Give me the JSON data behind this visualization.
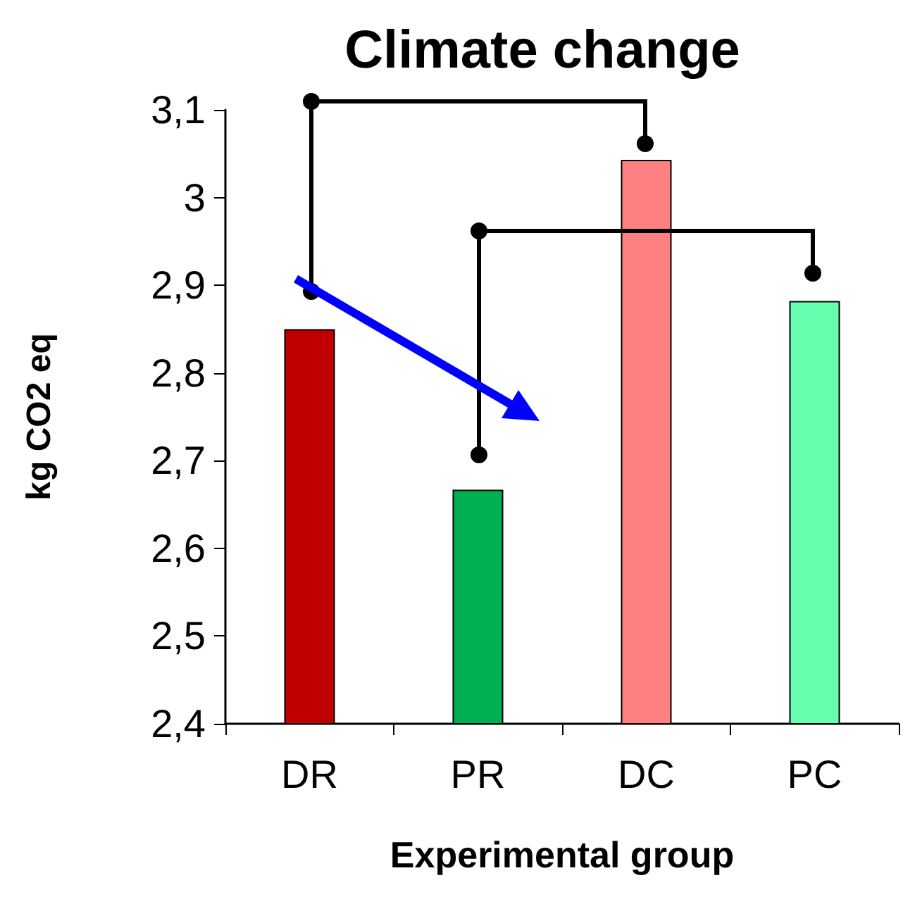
{
  "chart_data": {
    "type": "bar",
    "title": "Climate change",
    "xlabel": "Experimental group",
    "ylabel": "kg CO2 eq",
    "categories": [
      "DR",
      "PR",
      "DC",
      "PC"
    ],
    "values": [
      2.85,
      2.667,
      3.043,
      2.882
    ],
    "colors": [
      "#c00000",
      "#00b050",
      "#ff8080",
      "#66ffb0"
    ],
    "ylim": [
      2.4,
      3.1
    ],
    "yticks": [
      {
        "value": 2.4,
        "label": "2,4"
      },
      {
        "value": 2.5,
        "label": "2,5"
      },
      {
        "value": 2.6,
        "label": "2,6"
      },
      {
        "value": 2.7,
        "label": "2,7"
      },
      {
        "value": 2.8,
        "label": "2,8"
      },
      {
        "value": 2.9,
        "label": "2,9"
      },
      3,
      {
        "value": 3.1,
        "label": "3,1"
      }
    ],
    "data_labels": false
  }
}
